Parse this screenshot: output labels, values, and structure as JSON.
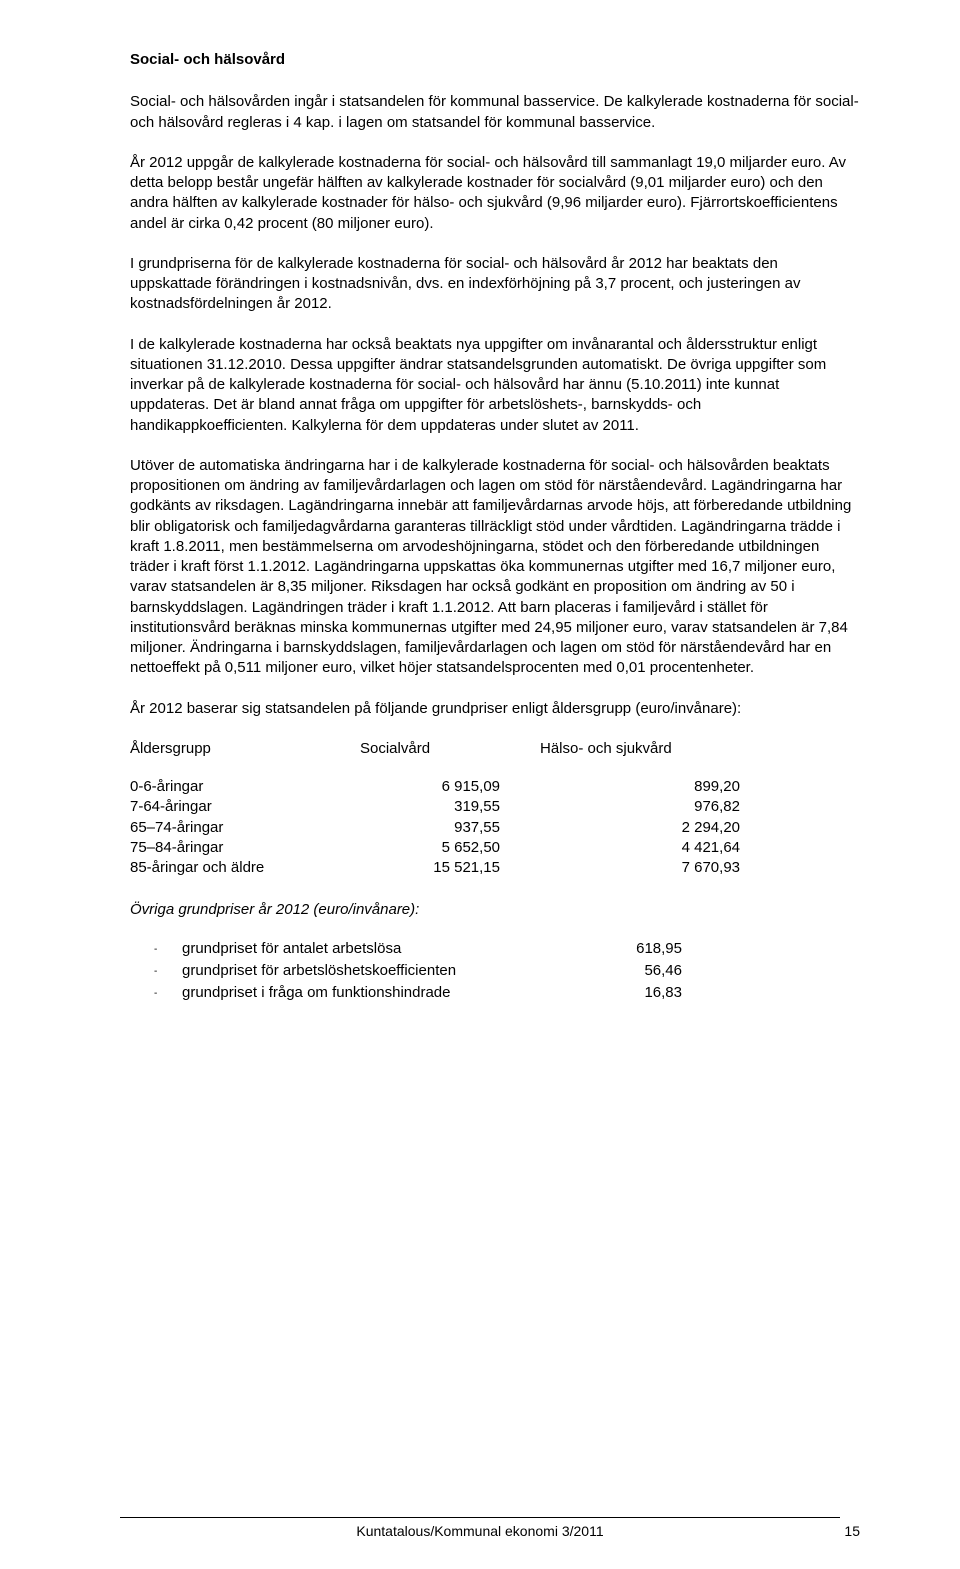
{
  "heading": "Social- och hälsovård",
  "p1": "Social- och hälsovården ingår i statsandelen för kommunal basservice. De kalkylerade kostnaderna för social- och hälsovård regleras i 4 kap. i lagen om statsandel för kommunal basservice.",
  "p2": "År 2012 uppgår de kalkylerade kostnaderna för social- och hälsovård till sammanlagt 19,0 miljarder euro. Av detta belopp består ungefär hälften av kalkylerade kostnader för socialvård (9,01 miljarder euro) och den andra hälften av kalkylerade kostnader för hälso- och sjukvård (9,96 miljarder euro). Fjärrortskoefficientens andel är cirka 0,42 procent (80 miljoner euro).",
  "p3": "I grundpriserna för de kalkylerade kostnaderna för social- och hälsovård år 2012 har beaktats den uppskattade förändringen i kostnadsnivån, dvs. en indexförhöjning på 3,7 procent, och justeringen av kostnadsfördelningen år 2012.",
  "p4": "I de kalkylerade kostnaderna har också beaktats nya uppgifter om invånarantal och åldersstruktur enligt situationen 31.12.2010. Dessa uppgifter ändrar statsandelsgrunden automatiskt. De övriga uppgifter som inverkar på de kalkylerade kostnaderna för social- och hälsovård har ännu (5.10.2011) inte kunnat uppdateras. Det är bland annat fråga om uppgifter för arbetslöshets-, barnskydds- och handikappkoefficienten. Kalkylerna för dem uppdateras under slutet av 2011.",
  "p5": "Utöver de automatiska ändringarna har i de kalkylerade kostnaderna för social- och hälsovården beaktats propositionen om ändring av familjevårdarlagen och lagen om stöd för närståendevård. Lagändringarna har godkänts av riksdagen. Lagändringarna innebär att familjevårdarnas arvode höjs, att förberedande utbildning blir obligatorisk och familjedagvårdarna garanteras tillräckligt stöd under vårdtiden. Lagändringarna trädde i kraft 1.8.2011, men bestämmelserna om arvodeshöjningarna, stödet och den förberedande utbildningen träder i kraft först 1.1.2012. Lagändringarna uppskattas öka kommunernas utgifter med 16,7 miljoner euro, varav statsandelen är 8,35 miljoner. Riksdagen har också godkänt en proposition om ändring av 50 i barnskyddslagen. Lagändringen träder i kraft 1.1.2012. Att barn placeras i familjevård i stället för institutionsvård beräknas minska kommunernas utgifter med 24,95 miljoner euro, varav statsandelen är 7,84 miljoner. Ändringarna i barnskyddslagen, familjevårdarlagen och lagen om stöd för närståendevård har en nettoeffekt på 0,511 miljoner euro, vilket höjer statsandelsprocenten med 0,01 procentenheter.",
  "p6": "År 2012 baserar sig statsandelen på följande grundpriser enligt åldersgrupp (euro/invånare):",
  "tableHeader": {
    "c1": "Åldersgrupp",
    "c2": "Socialvård",
    "c3": "Hälso- och sjukvård"
  },
  "tableRows": [
    {
      "c1": "0-6-åringar",
      "c2": "6 915,09",
      "c3": "899,20"
    },
    {
      "c1": "7-64-åringar",
      "c2": "319,55",
      "c3": "976,82"
    },
    {
      "c1": "65–74-åringar",
      "c2": "937,55",
      "c3": "2 294,20"
    },
    {
      "c1": "75–84-åringar",
      "c2": "5 652,50",
      "c3": "4 421,64"
    },
    {
      "c1": "85-åringar och äldre",
      "c2": "15 521,15",
      "c3": "7 670,93"
    }
  ],
  "subHeading": "Övriga grundpriser år 2012 (euro/invånare):",
  "priceList": [
    {
      "label": "grundpriset för antalet arbetslösa",
      "value": "618,95"
    },
    {
      "label": "grundpriset för arbetslöshetskoefficienten",
      "value": "56,46"
    },
    {
      "label": "grundpriset i fråga om funktionshindrade",
      "value": "16,83"
    }
  ],
  "footer": {
    "text": "Kuntatalous/Kommunal ekonomi 3/2011",
    "page": "15"
  },
  "dash": "-"
}
